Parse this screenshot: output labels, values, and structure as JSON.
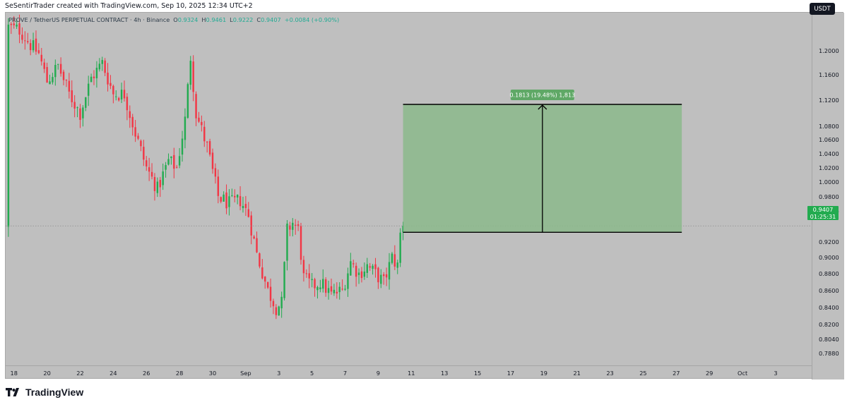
{
  "credit": "SeSentirTrader created with TradingView.com, Sep 10, 2025 12:34 UTC+2",
  "header": {
    "symbol": "PROVE / TetherUS PERPETUAL CONTRACT · 4h · Binance",
    "open_label": "O",
    "open": "0.9324",
    "high_label": "H",
    "high": "0.9461",
    "low_label": "L",
    "low": "0.9222",
    "close_label": "C",
    "close": "0.9407",
    "change": "+0.0084 (+0.90%)"
  },
  "currency_button": "USDT",
  "last_price": {
    "value": "0.9407",
    "countdown": "01:25:31"
  },
  "measure": {
    "label": "0.1813 (19.48%) 1,813"
  },
  "footer": {
    "brand": "TradingView",
    "logo_icon": "tradingview-logo-icon"
  },
  "colors": {
    "up": "#22ab4f",
    "down": "#f23645",
    "background": "#bfbfbf",
    "measure_fill": "#8bb98b",
    "measure_label_bg": "#5fa866"
  },
  "chart_data": {
    "type": "candlestick",
    "timeframe": "4h",
    "y_scale": "log",
    "ylim": [
      0.775,
      1.265
    ],
    "price_ticks": [
      "1.2000",
      "1.1600",
      "1.1200",
      "1.0800",
      "1.0600",
      "1.0400",
      "1.0200",
      "1.0000",
      "0.9800",
      "0.9600",
      "0.9200",
      "0.9000",
      "0.8800",
      "0.8600",
      "0.8400",
      "0.8200",
      "0.8040",
      "0.7880"
    ],
    "time_ticks": [
      "18",
      "20",
      "22",
      "24",
      "26",
      "28",
      "30",
      "Sep",
      "3",
      "5",
      "7",
      "9",
      "11",
      "13",
      "15",
      "17",
      "19",
      "21",
      "23",
      "25",
      "27",
      "29",
      "Oct",
      "3"
    ],
    "x_range": [
      "2025-08-17 12:00",
      "2025-10-04 00:00"
    ],
    "last_close": 0.9407,
    "measure_range": {
      "from": 0.9324,
      "to": 1.1137,
      "change": 0.1813,
      "percent": 19.48,
      "start": "2025-09-10 12:00",
      "end": "2025-09-27 08:00"
    },
    "anchors": [
      [
        "2025-08-17 16:00",
        1.24
      ],
      [
        "2025-08-18 08:00",
        1.235
      ],
      [
        "2025-08-19 00:00",
        1.21
      ],
      [
        "2025-08-19 12:00",
        1.195
      ],
      [
        "2025-08-20 00:00",
        1.15
      ],
      [
        "2025-08-20 16:00",
        1.175
      ],
      [
        "2025-08-21 08:00",
        1.13
      ],
      [
        "2025-08-22 00:00",
        1.1
      ],
      [
        "2025-08-22 16:00",
        1.155
      ],
      [
        "2025-08-23 08:00",
        1.18
      ],
      [
        "2025-08-24 00:00",
        1.13
      ],
      [
        "2025-08-24 16:00",
        1.13
      ],
      [
        "2025-08-25 08:00",
        1.07
      ],
      [
        "2025-08-26 00:00",
        1.02
      ],
      [
        "2025-08-26 16:00",
        0.99
      ],
      [
        "2025-08-27 08:00",
        1.03
      ],
      [
        "2025-08-27 20:00",
        1.02
      ],
      [
        "2025-08-28 08:00",
        1.09
      ],
      [
        "2025-08-28 16:00",
        1.19
      ],
      [
        "2025-08-29 00:00",
        1.1
      ],
      [
        "2025-08-29 16:00",
        1.05
      ],
      [
        "2025-08-30 08:00",
        0.98
      ],
      [
        "2025-08-31 00:00",
        0.97
      ],
      [
        "2025-08-31 16:00",
        0.975
      ],
      [
        "2025-09-01 04:00",
        0.955
      ],
      [
        "2025-09-01 16:00",
        0.905
      ],
      [
        "2025-09-02 08:00",
        0.86
      ],
      [
        "2025-09-02 20:00",
        0.84
      ],
      [
        "2025-09-03 04:00",
        0.845
      ],
      [
        "2025-09-03 12:00",
        0.935
      ],
      [
        "2025-09-03 20:00",
        0.945
      ],
      [
        "2025-09-04 04:00",
        0.935
      ],
      [
        "2025-09-04 12:00",
        0.875
      ],
      [
        "2025-09-05 00:00",
        0.865
      ],
      [
        "2025-09-05 12:00",
        0.87
      ],
      [
        "2025-09-06 04:00",
        0.855
      ],
      [
        "2025-09-06 20:00",
        0.86
      ],
      [
        "2025-09-07 08:00",
        0.895
      ],
      [
        "2025-09-07 20:00",
        0.88
      ],
      [
        "2025-09-08 08:00",
        0.89
      ],
      [
        "2025-09-08 20:00",
        0.88
      ],
      [
        "2025-09-09 08:00",
        0.87
      ],
      [
        "2025-09-09 20:00",
        0.9
      ],
      [
        "2025-09-10 04:00",
        0.89
      ],
      [
        "2025-09-10 08:00",
        0.93
      ],
      [
        "2025-09-10 12:00",
        0.9407
      ]
    ]
  }
}
